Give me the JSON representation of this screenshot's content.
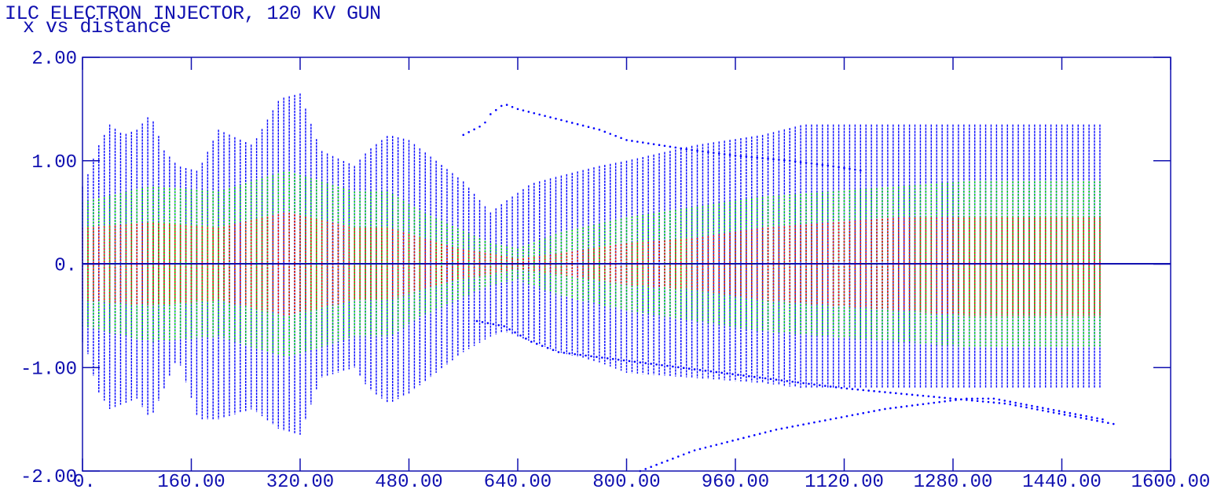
{
  "chart_data": {
    "type": "scatter",
    "title": "ILC ELECTRON INJECTOR, 120 KV GUN",
    "subtitle": "x vs distance",
    "xlabel": "",
    "ylabel": "",
    "xlim": [
      0,
      1600
    ],
    "ylim": [
      -2,
      2
    ],
    "x_tick_labels": [
      "0.",
      "160.00",
      "320.00",
      "480.00",
      "640.00",
      "800.00",
      "960.00",
      "1120.00",
      "1280.00",
      "1440.00",
      "1600.00"
    ],
    "y_tick_labels": [
      "2.00",
      "1.00",
      "0.",
      "-1.00",
      "-2.00"
    ],
    "x_ticks": [
      0,
      160,
      320,
      480,
      640,
      800,
      960,
      1120,
      1280,
      1440,
      1600
    ],
    "y_ticks": [
      2,
      1,
      0,
      -1,
      -2
    ],
    "grid": false,
    "colors": {
      "axis": "#1010b0",
      "outer": "#0000ff",
      "mid": "#00e000",
      "core": "#ff0000"
    },
    "series": [
      {
        "color": "#0000ff",
        "x": [
          0,
          10,
          20,
          40,
          60,
          80,
          100,
          120,
          140,
          170,
          200,
          250,
          290,
          320,
          350,
          400,
          420,
          450,
          480,
          520,
          560,
          600,
          620,
          660,
          700,
          760,
          800,
          900,
          1000,
          1060,
          1100,
          1200,
          1300,
          1400,
          1500
        ],
        "ymax": [
          0.75,
          0.9,
          1.1,
          1.35,
          1.25,
          1.3,
          1.45,
          1.1,
          0.95,
          0.9,
          1.3,
          1.15,
          1.6,
          1.65,
          1.1,
          0.95,
          1.1,
          1.25,
          1.2,
          1.0,
          0.8,
          0.5,
          0.6,
          0.78,
          0.85,
          0.95,
          1.0,
          1.15,
          1.25,
          1.35,
          1.35,
          1.35,
          1.35,
          1.35,
          1.35
        ],
        "ymin": [
          -0.75,
          -0.9,
          -1.2,
          -1.4,
          -1.35,
          -1.3,
          -1.5,
          -1.2,
          -0.9,
          -1.5,
          -1.5,
          -1.4,
          -1.6,
          -1.65,
          -1.1,
          -1.0,
          -1.2,
          -1.35,
          -1.25,
          -1.05,
          -0.85,
          -0.7,
          -0.65,
          -0.75,
          -0.85,
          -0.95,
          -1.05,
          -1.1,
          -1.15,
          -1.2,
          -1.2,
          -1.2,
          -1.2,
          -1.2,
          -1.2
        ]
      },
      {
        "color": "#00e000",
        "x": [
          0,
          100,
          200,
          300,
          400,
          450,
          500,
          550,
          600,
          640,
          700,
          800,
          900,
          1000,
          1100,
          1200,
          1300,
          1400,
          1500
        ],
        "ymax": [
          0.6,
          0.75,
          0.7,
          0.9,
          0.7,
          0.7,
          0.5,
          0.35,
          0.2,
          0.15,
          0.3,
          0.45,
          0.55,
          0.65,
          0.7,
          0.75,
          0.8,
          0.8,
          0.8
        ],
        "ymin": [
          -0.6,
          -0.75,
          -0.7,
          -0.9,
          -0.7,
          -0.7,
          -0.5,
          -0.35,
          -0.2,
          -0.15,
          -0.3,
          -0.45,
          -0.55,
          -0.65,
          -0.7,
          -0.75,
          -0.8,
          -0.8,
          -0.8
        ]
      },
      {
        "color": "#ff0000",
        "x": [
          0,
          100,
          200,
          300,
          400,
          450,
          500,
          550,
          600,
          640,
          700,
          800,
          900,
          1000,
          1100,
          1200,
          1300,
          1400,
          1500
        ],
        "ymax": [
          0.35,
          0.4,
          0.35,
          0.5,
          0.35,
          0.35,
          0.25,
          0.15,
          0.1,
          0.05,
          0.1,
          0.2,
          0.25,
          0.35,
          0.4,
          0.45,
          0.45,
          0.45,
          0.45
        ],
        "ymin": [
          -0.35,
          -0.4,
          -0.35,
          -0.5,
          -0.35,
          -0.35,
          -0.25,
          -0.15,
          -0.1,
          -0.05,
          -0.1,
          -0.2,
          -0.25,
          -0.35,
          -0.4,
          -0.45,
          -0.5,
          -0.5,
          -0.5
        ]
      },
      {
        "color": "#0000ff",
        "name_hint": "upper envelope trace",
        "x": [
          560,
          590,
          600,
          620,
          640,
          700,
          760,
          800,
          850,
          900,
          960,
          1040,
          1100,
          1150
        ],
        "y": [
          1.25,
          1.35,
          1.45,
          1.55,
          1.5,
          1.4,
          1.3,
          1.2,
          1.15,
          1.1,
          1.05,
          1.0,
          0.95,
          0.9
        ]
      },
      {
        "color": "#0000ff",
        "name_hint": "lower envelope trace 1",
        "x": [
          580,
          620,
          660,
          700,
          760,
          820,
          880,
          940,
          1000,
          1060,
          1120,
          1200,
          1280,
          1360,
          1440,
          1520
        ],
        "y": [
          -0.55,
          -0.6,
          -0.75,
          -0.85,
          -0.9,
          -0.95,
          -1.0,
          -1.05,
          -1.1,
          -1.15,
          -1.2,
          -1.25,
          -1.3,
          -1.35,
          -1.45,
          -1.55
        ]
      },
      {
        "color": "#0000ff",
        "name_hint": "lower envelope trace 2",
        "x": [
          820,
          860,
          900,
          960,
          1020,
          1100,
          1180,
          1240,
          1300,
          1340,
          1380,
          1420,
          1460,
          1500
        ],
        "y": [
          -2.0,
          -1.9,
          -1.8,
          -1.7,
          -1.6,
          -1.5,
          -1.4,
          -1.35,
          -1.3,
          -1.3,
          -1.35,
          -1.4,
          -1.45,
          -1.5
        ]
      }
    ]
  }
}
